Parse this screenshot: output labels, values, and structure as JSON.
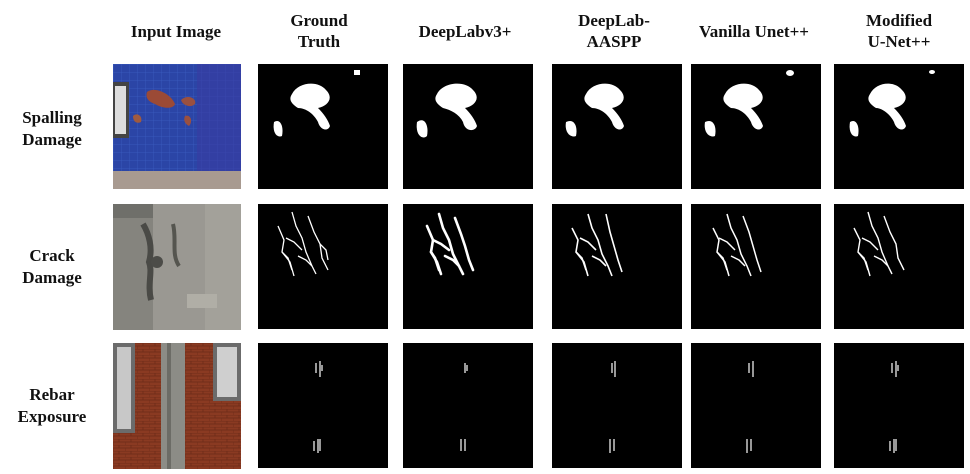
{
  "columns": [
    {
      "key": "input",
      "label": "Input Image"
    },
    {
      "key": "gt",
      "label": "Ground Truth"
    },
    {
      "key": "dlv3p",
      "label": "DeepLabv3+"
    },
    {
      "key": "dlaspp",
      "label": "DeepLab-AASPP"
    },
    {
      "key": "unetpp",
      "label": "Vanilla Unet++"
    },
    {
      "key": "munetpp",
      "label": "Modified U-Net++"
    }
  ],
  "header_lines": {
    "input": [
      "Input Image"
    ],
    "gt": [
      "Ground",
      "Truth"
    ],
    "dlv3p": [
      "DeepLabv3+"
    ],
    "dlaspp": [
      "DeepLab-",
      "AASPP"
    ],
    "unetpp": [
      "Vanilla Unet++"
    ],
    "munetpp": [
      "Modified",
      "U-Net++"
    ]
  },
  "rows": [
    {
      "key": "spalling",
      "lines": [
        "Spalling",
        "Damage"
      ]
    },
    {
      "key": "crack",
      "lines": [
        "Crack",
        "Damage"
      ]
    },
    {
      "key": "rebar",
      "lines": [
        "Rebar",
        "Exposure"
      ]
    }
  ],
  "colors": {
    "mask_background": "#000000",
    "mask_foreground": "#ffffff",
    "spalling_wall": "#2a44a8",
    "concrete": "#8f8f88",
    "brick": "#8a3a22"
  }
}
